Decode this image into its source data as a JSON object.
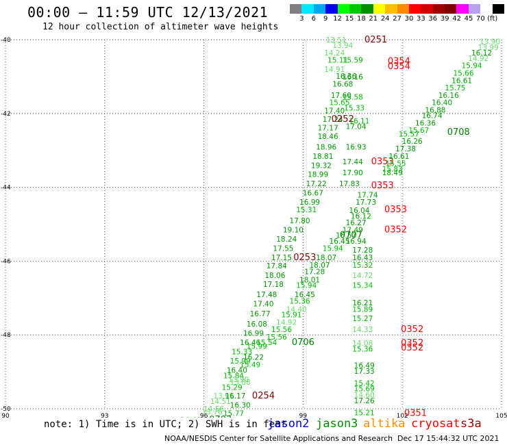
{
  "header": {
    "title": "00:00 – 11:59 UTC 12/13/2021",
    "subtitle": "12 hour collection of altimeter wave heights"
  },
  "colorbar": {
    "colors": [
      "#808080",
      "#00e8ff",
      "#00a8f0",
      "#0000f0",
      "#00ff00",
      "#00c800",
      "#009000",
      "#ffff00",
      "#ffbe00",
      "#ff8c00",
      "#ff0000",
      "#d00000",
      "#a00000",
      "#800000",
      "#ff00ff",
      "#b8a0f0",
      "#ffffff",
      "#000000"
    ],
    "labels": [
      "3",
      "6",
      "9",
      "12",
      "15",
      "18",
      "21",
      "24",
      "27",
      "30",
      "33",
      "36",
      "39",
      "42",
      "45",
      "70",
      "(ft)"
    ]
  },
  "chart_data": {
    "type": "scatter",
    "xlim": [
      90,
      105
    ],
    "ylim": [
      -50,
      -40
    ],
    "x_ticks": [
      90,
      93,
      96,
      99,
      102,
      105
    ],
    "x_tick_labels": [
      "90",
      "93",
      "96",
      "99",
      "102",
      "105"
    ],
    "y_ticks": [
      -40,
      -42,
      -44,
      -46,
      -48,
      -50
    ],
    "y_tick_labels": [
      "-40",
      "-42",
      "-44",
      "-46",
      "-48",
      "-50"
    ],
    "grid": true,
    "series_colors": {
      "a": "#66dd66",
      "b": "#00bb00",
      "c": "#009900",
      "d": "#008000",
      "e": "#800000",
      "f": "#ff0000"
    },
    "points": [
      {
        "x": 101.2,
        "y": -40.0,
        "label": "0251",
        "c": "e",
        "s": 13
      },
      {
        "x": 100.0,
        "y": -40.0,
        "label": "13.51",
        "c": "a"
      },
      {
        "x": 100.2,
        "y": -40.15,
        "label": "13.94",
        "c": "a"
      },
      {
        "x": 99.95,
        "y": -40.35,
        "label": "14.24",
        "c": "a"
      },
      {
        "x": 100.05,
        "y": -40.55,
        "label": "15.11",
        "c": "b"
      },
      {
        "x": 100.5,
        "y": -40.55,
        "label": "15.59",
        "c": "b"
      },
      {
        "x": 101.9,
        "y": -40.58,
        "label": "0354",
        "c": "f",
        "s": 13
      },
      {
        "x": 101.9,
        "y": -40.72,
        "label": "0354",
        "c": "f",
        "s": 13
      },
      {
        "x": 99.95,
        "y": -40.8,
        "label": "14.91",
        "c": "a"
      },
      {
        "x": 100.3,
        "y": -40.98,
        "label": "16.36",
        "c": "c"
      },
      {
        "x": 100.5,
        "y": -41.0,
        "label": "16.16",
        "c": "c"
      },
      {
        "x": 100.2,
        "y": -41.2,
        "label": "16.68",
        "c": "c"
      },
      {
        "x": 100.15,
        "y": -41.5,
        "label": "17.60",
        "c": "c"
      },
      {
        "x": 100.5,
        "y": -41.55,
        "label": "15.58",
        "c": "b"
      },
      {
        "x": 100.1,
        "y": -41.7,
        "label": "15.65",
        "c": "b"
      },
      {
        "x": 100.55,
        "y": -41.85,
        "label": "15.33",
        "c": "b"
      },
      {
        "x": 99.95,
        "y": -41.92,
        "label": "17.40",
        "c": "c"
      },
      {
        "x": 99.9,
        "y": -42.15,
        "label": "17.24",
        "c": "c"
      },
      {
        "x": 100.2,
        "y": -42.15,
        "label": "0252",
        "c": "e",
        "s": 13
      },
      {
        "x": 100.7,
        "y": -42.2,
        "label": "16.11",
        "c": "b"
      },
      {
        "x": 100.6,
        "y": -42.35,
        "label": "17.04",
        "c": "c"
      },
      {
        "x": 99.75,
        "y": -42.38,
        "label": "17.17",
        "c": "c"
      },
      {
        "x": 99.75,
        "y": -42.62,
        "label": "18.46",
        "c": "c"
      },
      {
        "x": 99.7,
        "y": -42.9,
        "label": "18.96",
        "c": "c"
      },
      {
        "x": 100.6,
        "y": -42.9,
        "label": "16.93",
        "c": "c"
      },
      {
        "x": 99.6,
        "y": -43.15,
        "label": "18.81",
        "c": "c"
      },
      {
        "x": 100.5,
        "y": -43.3,
        "label": "17.44",
        "c": "c"
      },
      {
        "x": 101.4,
        "y": -43.3,
        "label": "0353",
        "c": "f",
        "s": 13
      },
      {
        "x": 99.55,
        "y": -43.4,
        "label": "19.32",
        "c": "c"
      },
      {
        "x": 100.5,
        "y": -43.6,
        "label": "17.90",
        "c": "c"
      },
      {
        "x": 101.7,
        "y": -43.6,
        "label": "18.49",
        "c": "c"
      },
      {
        "x": 99.45,
        "y": -43.65,
        "label": "18.99",
        "c": "c"
      },
      {
        "x": 99.4,
        "y": -43.9,
        "label": "17.22",
        "c": "c"
      },
      {
        "x": 100.4,
        "y": -43.9,
        "label": "17.83",
        "c": "c"
      },
      {
        "x": 101.4,
        "y": -43.95,
        "label": "0353",
        "c": "f",
        "s": 13
      },
      {
        "x": 99.3,
        "y": -44.15,
        "label": "16.67",
        "c": "c"
      },
      {
        "x": 100.95,
        "y": -44.2,
        "label": "17.74",
        "c": "c"
      },
      {
        "x": 99.2,
        "y": -44.4,
        "label": "16.99",
        "c": "c"
      },
      {
        "x": 100.9,
        "y": -44.4,
        "label": "17.73",
        "c": "c"
      },
      {
        "x": 99.1,
        "y": -44.6,
        "label": "15.31",
        "c": "b"
      },
      {
        "x": 101.8,
        "y": -44.6,
        "label": "0353",
        "c": "f",
        "s": 13
      },
      {
        "x": 100.7,
        "y": -44.62,
        "label": "16.04",
        "c": "c"
      },
      {
        "x": 100.75,
        "y": -44.78,
        "label": "16.12",
        "c": "c"
      },
      {
        "x": 98.9,
        "y": -44.9,
        "label": "17.80",
        "c": "c"
      },
      {
        "x": 100.6,
        "y": -44.95,
        "label": "16.27",
        "c": "c"
      },
      {
        "x": 98.7,
        "y": -45.15,
        "label": "19.10",
        "c": "c"
      },
      {
        "x": 100.5,
        "y": -45.15,
        "label": "17.49",
        "c": "c"
      },
      {
        "x": 101.8,
        "y": -45.15,
        "label": "0352",
        "c": "f",
        "s": 13
      },
      {
        "x": 100.45,
        "y": -45.3,
        "label": "0707",
        "c": "d",
        "s": 13
      },
      {
        "x": 98.5,
        "y": -45.4,
        "label": "18.24",
        "c": "c"
      },
      {
        "x": 100.3,
        "y": -45.3,
        "label": "16.57",
        "c": "c"
      },
      {
        "x": 100.1,
        "y": -45.45,
        "label": "16.45",
        "c": "c"
      },
      {
        "x": 100.6,
        "y": -45.45,
        "label": "16.94",
        "c": "c"
      },
      {
        "x": 98.4,
        "y": -45.65,
        "label": "17.55",
        "c": "c"
      },
      {
        "x": 99.9,
        "y": -45.65,
        "label": "15.94",
        "c": "b"
      },
      {
        "x": 100.8,
        "y": -45.7,
        "label": "17.28",
        "c": "c"
      },
      {
        "x": 98.35,
        "y": -45.9,
        "label": "17.15",
        "c": "c"
      },
      {
        "x": 99.05,
        "y": -45.9,
        "label": "0253",
        "c": "e",
        "s": 13
      },
      {
        "x": 99.7,
        "y": -45.9,
        "label": "18.07",
        "c": "c"
      },
      {
        "x": 100.8,
        "y": -45.9,
        "label": "16.43",
        "c": "c"
      },
      {
        "x": 98.2,
        "y": -46.12,
        "label": "17.84",
        "c": "c"
      },
      {
        "x": 99.5,
        "y": -46.1,
        "label": "18.07",
        "c": "c"
      },
      {
        "x": 100.8,
        "y": -46.1,
        "label": "15.32",
        "c": "b"
      },
      {
        "x": 99.35,
        "y": -46.28,
        "label": "17.28",
        "c": "c"
      },
      {
        "x": 98.15,
        "y": -46.38,
        "label": "18.06",
        "c": "c"
      },
      {
        "x": 100.8,
        "y": -46.38,
        "label": "14.72",
        "c": "a"
      },
      {
        "x": 99.2,
        "y": -46.5,
        "label": "18.01",
        "c": "c"
      },
      {
        "x": 98.1,
        "y": -46.62,
        "label": "17.18",
        "c": "c"
      },
      {
        "x": 99.1,
        "y": -46.65,
        "label": "15.94",
        "c": "b"
      },
      {
        "x": 100.8,
        "y": -46.65,
        "label": "15.34",
        "c": "b"
      },
      {
        "x": 97.9,
        "y": -46.9,
        "label": "17.48",
        "c": "c"
      },
      {
        "x": 99.05,
        "y": -46.9,
        "label": "16.45",
        "c": "c"
      },
      {
        "x": 98.9,
        "y": -47.08,
        "label": "15.36",
        "c": "b"
      },
      {
        "x": 97.8,
        "y": -47.15,
        "label": "17.40",
        "c": "c"
      },
      {
        "x": 100.8,
        "y": -47.12,
        "label": "16.21",
        "c": "c"
      },
      {
        "x": 100.8,
        "y": -47.3,
        "label": "15.89",
        "c": "b"
      },
      {
        "x": 98.8,
        "y": -47.3,
        "label": "14.40",
        "c": "a"
      },
      {
        "x": 97.7,
        "y": -47.42,
        "label": "16.77",
        "c": "c"
      },
      {
        "x": 98.65,
        "y": -47.45,
        "label": "15.91",
        "c": "b"
      },
      {
        "x": 100.8,
        "y": -47.55,
        "label": "15.27",
        "c": "b"
      },
      {
        "x": 97.6,
        "y": -47.7,
        "label": "16.08",
        "c": "c"
      },
      {
        "x": 98.5,
        "y": -47.65,
        "label": "14.92",
        "c": "a"
      },
      {
        "x": 98.35,
        "y": -47.85,
        "label": "15.56",
        "c": "b"
      },
      {
        "x": 97.5,
        "y": -47.95,
        "label": "16.99",
        "c": "c"
      },
      {
        "x": 100.8,
        "y": -47.85,
        "label": "14.33",
        "c": "a"
      },
      {
        "x": 102.3,
        "y": -47.85,
        "label": "0352",
        "c": "f",
        "s": 13
      },
      {
        "x": 98.2,
        "y": -48.05,
        "label": "15.56",
        "c": "b"
      },
      {
        "x": 97.4,
        "y": -48.2,
        "label": "16.46",
        "c": "c"
      },
      {
        "x": 97.9,
        "y": -48.2,
        "label": "15.54",
        "c": "b"
      },
      {
        "x": 99.0,
        "y": -48.2,
        "label": "0706",
        "c": "d",
        "s": 13
      },
      {
        "x": 100.8,
        "y": -48.22,
        "label": "14.08",
        "c": "a"
      },
      {
        "x": 102.3,
        "y": -48.22,
        "label": "0352",
        "c": "f",
        "s": 13
      },
      {
        "x": 102.3,
        "y": -48.35,
        "label": "0352",
        "c": "f",
        "s": 13
      },
      {
        "x": 97.6,
        "y": -48.3,
        "label": "15.99",
        "c": "b"
      },
      {
        "x": 97.15,
        "y": -48.45,
        "label": "15.33",
        "c": "b"
      },
      {
        "x": 100.8,
        "y": -48.38,
        "label": "15.36",
        "c": "b"
      },
      {
        "x": 97.5,
        "y": -48.6,
        "label": "16.22",
        "c": "c"
      },
      {
        "x": 97.1,
        "y": -48.7,
        "label": "15.99",
        "c": "b"
      },
      {
        "x": 97.4,
        "y": -48.8,
        "label": "15.49",
        "c": "b"
      },
      {
        "x": 100.85,
        "y": -48.82,
        "label": "16.49",
        "c": "c"
      },
      {
        "x": 97.0,
        "y": -48.95,
        "label": "16.40",
        "c": "c"
      },
      {
        "x": 100.85,
        "y": -48.98,
        "label": "17.33",
        "c": "c"
      },
      {
        "x": 96.9,
        "y": -49.1,
        "label": "15.84",
        "c": "b"
      },
      {
        "x": 97.05,
        "y": -49.2,
        "label": "13.90",
        "c": "a"
      },
      {
        "x": 97.1,
        "y": -49.28,
        "label": "13.88",
        "c": "a"
      },
      {
        "x": 100.85,
        "y": -49.3,
        "label": "15.42",
        "c": "b"
      },
      {
        "x": 96.85,
        "y": -49.42,
        "label": "15.29",
        "c": "b"
      },
      {
        "x": 100.85,
        "y": -49.45,
        "label": "15.69",
        "c": "b"
      },
      {
        "x": 96.6,
        "y": -49.65,
        "label": "13.91",
        "c": "a"
      },
      {
        "x": 96.95,
        "y": -49.65,
        "label": "16.17",
        "c": "c"
      },
      {
        "x": 97.8,
        "y": -49.65,
        "label": "0254",
        "c": "e",
        "s": 13
      },
      {
        "x": 100.85,
        "y": -49.62,
        "label": "14.60",
        "c": "a"
      },
      {
        "x": 100.85,
        "y": -49.78,
        "label": "17.26",
        "c": "c"
      },
      {
        "x": 96.5,
        "y": -49.8,
        "label": "14.51",
        "c": "a"
      },
      {
        "x": 97.1,
        "y": -49.9,
        "label": "16.30",
        "c": "c"
      },
      {
        "x": 96.3,
        "y": -50.0,
        "label": "14.56",
        "c": "a"
      },
      {
        "x": 96.25,
        "y": -50.08,
        "label": "13.76",
        "c": "a"
      },
      {
        "x": 96.9,
        "y": -50.12,
        "label": "15.77",
        "c": "b"
      },
      {
        "x": 100.85,
        "y": -50.1,
        "label": "15.21",
        "c": "b"
      },
      {
        "x": 102.4,
        "y": -50.12,
        "label": "0351",
        "c": "f",
        "s": 13
      },
      {
        "x": 95.6,
        "y": -50.3,
        "label": "14.40",
        "c": "a"
      },
      {
        "x": 96.5,
        "y": -50.3,
        "label": "0703",
        "c": "d",
        "s": 13
      },
      {
        "x": 96.55,
        "y": -50.35,
        "label": "0705",
        "c": "d",
        "s": 13
      },
      {
        "x": 100.85,
        "y": -50.35,
        "label": "16.33",
        "c": "c"
      },
      {
        "x": 102.4,
        "y": -50.35,
        "label": "0351",
        "c": "f",
        "s": 13
      },
      {
        "x": 104.65,
        "y": -40.05,
        "label": "13.90",
        "c": "a"
      },
      {
        "x": 104.6,
        "y": -40.2,
        "label": "13.99",
        "c": "a"
      },
      {
        "x": 104.4,
        "y": -40.35,
        "label": "16.12",
        "c": "c"
      },
      {
        "x": 104.3,
        "y": -40.5,
        "label": "14.92",
        "c": "a"
      },
      {
        "x": 104.1,
        "y": -40.7,
        "label": "15.94",
        "c": "b"
      },
      {
        "x": 103.85,
        "y": -40.9,
        "label": "15.66",
        "c": "b"
      },
      {
        "x": 103.8,
        "y": -41.1,
        "label": "16.61",
        "c": "c"
      },
      {
        "x": 103.6,
        "y": -41.3,
        "label": "15.75",
        "c": "b"
      },
      {
        "x": 103.4,
        "y": -41.5,
        "label": "16.16",
        "c": "c"
      },
      {
        "x": 103.2,
        "y": -41.7,
        "label": "16.40",
        "c": "c"
      },
      {
        "x": 103.0,
        "y": -41.9,
        "label": "16.88",
        "c": "c"
      },
      {
        "x": 102.9,
        "y": -42.05,
        "label": "16.74",
        "c": "c"
      },
      {
        "x": 102.7,
        "y": -42.25,
        "label": "16.36",
        "c": "c"
      },
      {
        "x": 102.5,
        "y": -42.45,
        "label": "15.67",
        "c": "b"
      },
      {
        "x": 103.7,
        "y": -42.5,
        "label": "0708",
        "c": "d",
        "s": 13
      },
      {
        "x": 102.2,
        "y": -42.55,
        "label": "15.57",
        "c": "b"
      },
      {
        "x": 102.3,
        "y": -42.75,
        "label": "16.26",
        "c": "c"
      },
      {
        "x": 102.1,
        "y": -42.95,
        "label": "17.38",
        "c": "c"
      },
      {
        "x": 101.9,
        "y": -43.15,
        "label": "16.61",
        "c": "c"
      },
      {
        "x": 101.8,
        "y": -43.35,
        "label": "15.55",
        "c": "b"
      },
      {
        "x": 101.7,
        "y": -43.5,
        "label": "15.83",
        "c": "b"
      }
    ]
  },
  "legend": {
    "note": "note: 1) Time is in UTC; 2) SWH is in feet",
    "items": [
      {
        "label": "jason2",
        "color": "#0000cc"
      },
      {
        "label": "jason3",
        "color": "#009000"
      },
      {
        "label": "altika",
        "color": "#ff8c00"
      },
      {
        "label": "cryosat",
        "color": "#ff0000"
      },
      {
        "label": "s3a",
        "color": "#990000"
      }
    ]
  },
  "footer": {
    "credit": "NOAA/NESDIS Center for Satellite Applications and Research",
    "timestamp": "Dec 17 15:44:32 UTC 2021"
  }
}
